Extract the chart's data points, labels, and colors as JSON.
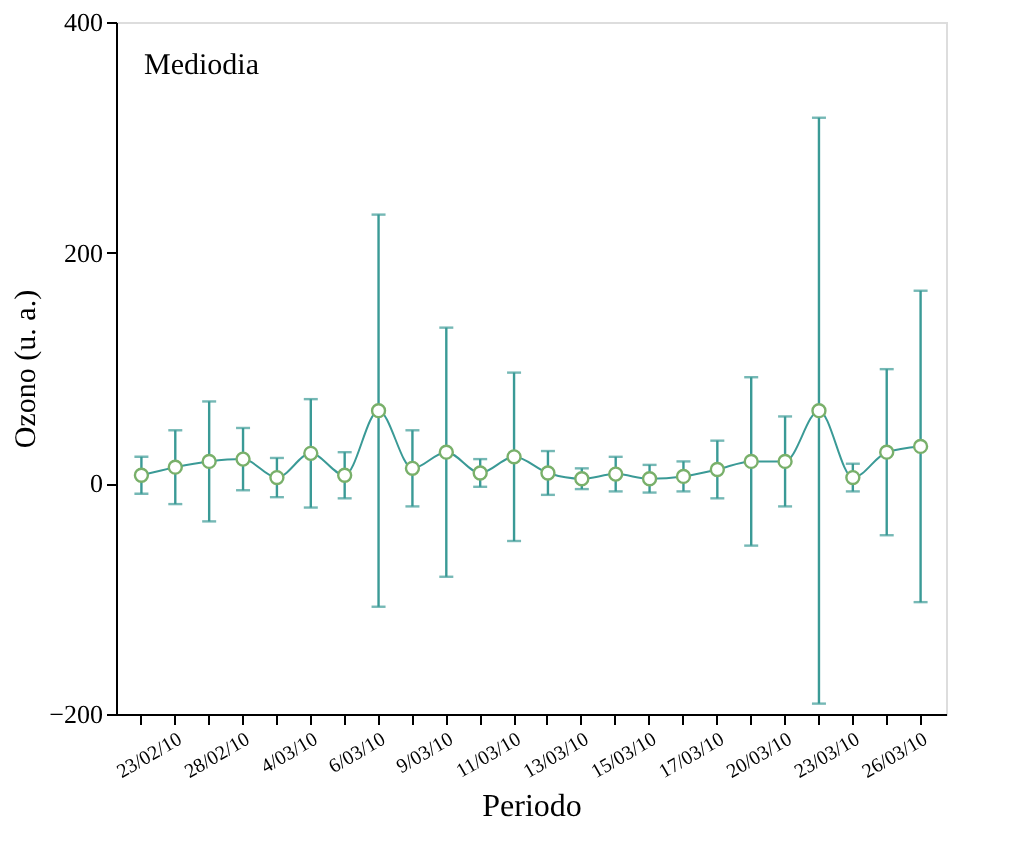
{
  "chart_data": {
    "type": "line",
    "xlabel": "Periodo",
    "ylabel": "Ozono (u. a.)",
    "annotations": [
      "Mediodia"
    ],
    "categories": [
      null,
      "23/02/10",
      null,
      "28/02/10",
      null,
      "4/03/10",
      null,
      "6/03/10",
      null,
      "9/03/10",
      null,
      "11/03/10",
      null,
      "13/03/10",
      null,
      "15/03/10",
      null,
      "17/03/10",
      null,
      "20/03/10",
      null,
      "23/03/10",
      null,
      "26/03/10"
    ],
    "series": [
      {
        "color": "#3a9a96",
        "values": [
          7,
          14,
          19,
          21,
          5,
          26,
          7,
          63,
          13,
          27,
          9,
          23,
          9,
          4,
          8,
          4,
          6,
          12,
          19,
          19,
          63,
          5,
          27,
          32
        ],
        "errors": [
          16,
          32,
          52,
          27,
          17,
          47,
          20,
          170,
          33,
          108,
          12,
          73,
          19,
          9,
          15,
          12,
          13,
          25,
          73,
          39,
          254,
          12,
          72,
          135
        ]
      }
    ],
    "ylim": [
      -200,
      400
    ],
    "yticks": [
      -200,
      0,
      200,
      400
    ],
    "grid": false,
    "marker": "circle",
    "line_style": "solid"
  }
}
